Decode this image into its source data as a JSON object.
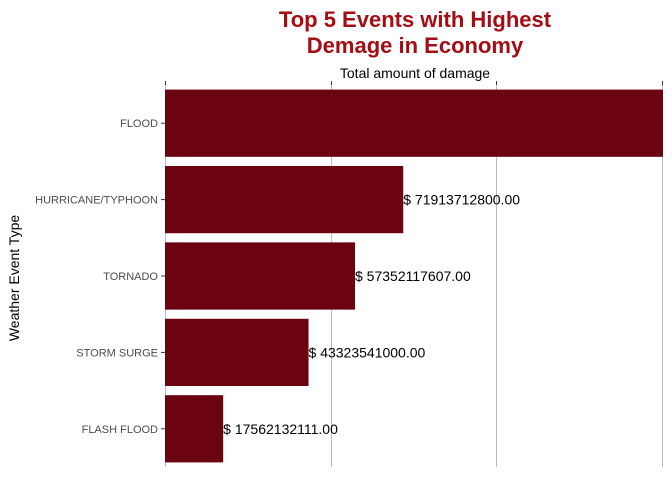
{
  "chart_data": {
    "type": "bar",
    "orientation": "horizontal",
    "title_lines": [
      "Top 5 Events with Highest",
      "Demage in Economy"
    ],
    "xlabel": "Total amount of damage",
    "ylabel": "Weather Event Type",
    "x_axis_position": "top",
    "categories": [
      "FLOOD",
      "HURRICANE/TYPHOON",
      "TORNADO",
      "STORM SURGE",
      "FLASH FLOOD"
    ],
    "values": [
      150319678257,
      71913712800,
      57352117607,
      43323541000,
      17562132111
    ],
    "labels": [
      "",
      "$ 71913712800.00",
      "$ 57352117607.00",
      "$ 43323541000.00",
      "$ 17562132111.00"
    ],
    "xlim": [
      0,
      150319678257
    ],
    "x_gridlines": [
      0,
      50000000000,
      100000000000,
      150000000000
    ],
    "grid": "vertical",
    "legend": "none"
  },
  "colors": {
    "bar": "#6b0311",
    "title": "#a40d13"
  }
}
